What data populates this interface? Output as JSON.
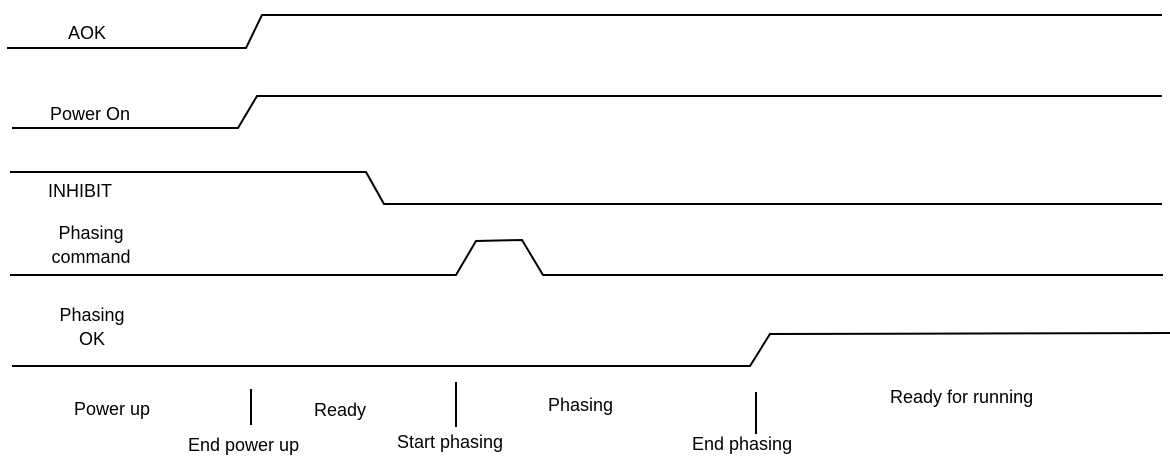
{
  "signals": [
    {
      "name": "AOK"
    },
    {
      "name": "Power On"
    },
    {
      "name": "INHIBIT"
    },
    {
      "name_line1": "Phasing",
      "name_line2": "command"
    },
    {
      "name_line1": "Phasing",
      "name_line2": "OK"
    }
  ],
  "phases": [
    "Power up",
    "Ready",
    "Phasing",
    "Ready for running"
  ],
  "events": [
    "End power up",
    "Start phasing",
    "End phasing"
  ]
}
